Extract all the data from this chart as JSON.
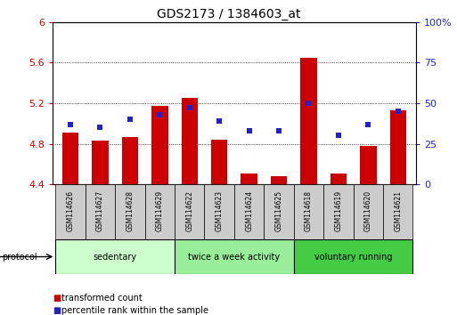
{
  "title": "GDS2173 / 1384603_at",
  "samples": [
    "GSM114626",
    "GSM114627",
    "GSM114628",
    "GSM114629",
    "GSM114622",
    "GSM114623",
    "GSM114624",
    "GSM114625",
    "GSM114618",
    "GSM114619",
    "GSM114620",
    "GSM114621"
  ],
  "bar_values": [
    4.91,
    4.83,
    4.87,
    5.17,
    5.25,
    4.84,
    4.51,
    4.48,
    5.65,
    4.51,
    4.78,
    5.13
  ],
  "percentile_values": [
    37,
    35,
    40,
    43,
    47,
    39,
    33,
    33,
    50,
    30,
    37,
    45
  ],
  "bar_color": "#cc0000",
  "dot_color": "#2222cc",
  "ylim_left": [
    4.4,
    6.0
  ],
  "ylim_right": [
    0,
    100
  ],
  "yticks_left": [
    4.4,
    4.8,
    5.2,
    5.6,
    6.0
  ],
  "ytick_labels_left": [
    "4.4",
    "4.8",
    "5.2",
    "5.6",
    "6"
  ],
  "yticks_right": [
    0,
    25,
    50,
    75,
    100
  ],
  "ytick_labels_right": [
    "0",
    "25",
    "50",
    "75",
    "100%"
  ],
  "groups": [
    {
      "label": "sedentary",
      "start": 0,
      "end": 4,
      "color": "#ccffcc"
    },
    {
      "label": "twice a week activity",
      "start": 4,
      "end": 8,
      "color": "#99ee99"
    },
    {
      "label": "voluntary running",
      "start": 8,
      "end": 12,
      "color": "#44cc44"
    }
  ],
  "protocol_label": "protocol",
  "legend_items": [
    {
      "color": "#cc0000",
      "label": "transformed count"
    },
    {
      "color": "#2222cc",
      "label": "percentile rank within the sample"
    }
  ],
  "bar_width": 0.55,
  "yaxis_left_color": "#cc0000",
  "yaxis_right_color": "#2222cc",
  "grid_yticks": [
    4.8,
    5.2,
    5.6
  ],
  "sample_box_color": "#cccccc",
  "title_fontsize": 10
}
